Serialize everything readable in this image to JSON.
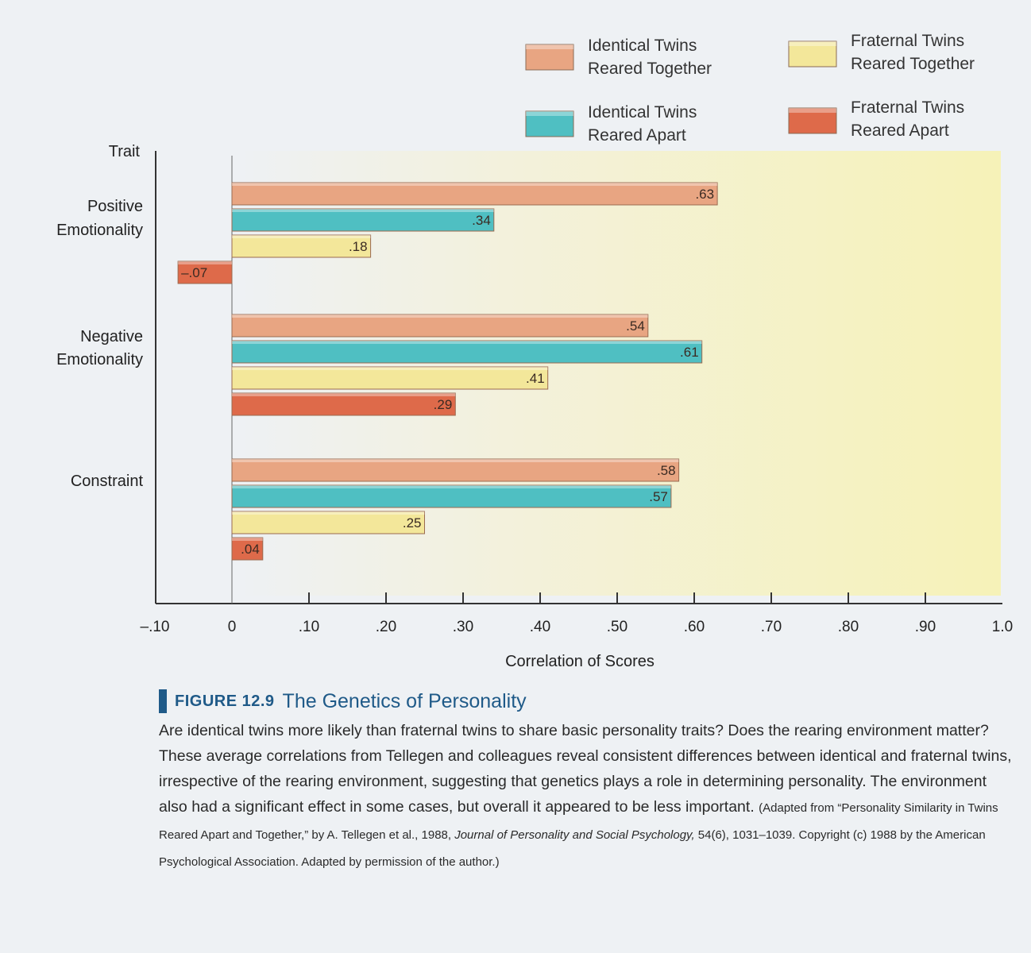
{
  "chart_data": {
    "type": "bar",
    "orientation": "horizontal",
    "y_axis_title": "Trait",
    "xlabel": "Correlation of Scores",
    "xlim": [
      -0.1,
      1.0
    ],
    "x_ticks": [
      -0.1,
      0,
      0.1,
      0.2,
      0.3,
      0.4,
      0.5,
      0.6,
      0.7,
      0.8,
      0.9,
      1.0
    ],
    "x_tick_labels": [
      "–.10",
      "0",
      ".10",
      ".20",
      ".30",
      ".40",
      ".50",
      ".60",
      ".70",
      ".80",
      ".90",
      "1.0"
    ],
    "categories": [
      "Positive Emotionality",
      "Negative Emotionality",
      "Constraint"
    ],
    "category_labels": [
      [
        "Positive",
        "Emotionality"
      ],
      [
        "Negative",
        "Emotionality"
      ],
      [
        "Constraint"
      ]
    ],
    "series": [
      {
        "name": "Identical Twins Reared Together",
        "legend_lines": [
          "Identical Twins",
          "Reared Together"
        ],
        "color": "#e8a582",
        "values": [
          0.63,
          0.54,
          0.58
        ],
        "value_labels": [
          ".63",
          ".54",
          ".58"
        ]
      },
      {
        "name": "Identical Twins Reared Apart",
        "legend_lines": [
          "Identical Twins",
          "Reared Apart"
        ],
        "color": "#4fbfc2",
        "values": [
          0.34,
          0.61,
          0.57
        ],
        "value_labels": [
          ".34",
          ".61",
          ".57"
        ]
      },
      {
        "name": "Fraternal Twins Reared Together",
        "legend_lines": [
          "Fraternal Twins",
          "Reared Together"
        ],
        "color": "#f3e79a",
        "values": [
          0.18,
          0.41,
          0.25
        ],
        "value_labels": [
          ".18",
          ".41",
          ".25"
        ]
      },
      {
        "name": "Fraternal Twins Reared Apart",
        "legend_lines": [
          "Fraternal Twins",
          "Reared Apart"
        ],
        "color": "#de6a4a",
        "values": [
          -0.07,
          0.29,
          0.04
        ],
        "value_labels": [
          "–.07",
          ".29",
          ".04"
        ]
      }
    ],
    "legend_placement": "top"
  },
  "caption": {
    "label": "FIGURE 12.9",
    "title": "The Genetics of Personality",
    "body": "Are identical twins more likely than fraternal twins to share basic personality traits? Does the rearing environment matter? These average correlations from Tellegen and colleagues reveal consistent differences between identical and fraternal twins, irrespective of the rearing environment, suggesting that genetics plays a role in determining personality. The environment also had a significant effect in some cases, but overall it appeared to be less important.",
    "source_start": "(Adapted from “Personality Similarity in Twins Reared Apart and Together,” by A. Tellegen et al., 1988, ",
    "source_journal": "Journal of Personality and Social Psychology,",
    "source_end": " 54(6), 1031–1039. Copyright (c) 1988 by the American Psychological Association. Adapted by permission of the author.)"
  }
}
